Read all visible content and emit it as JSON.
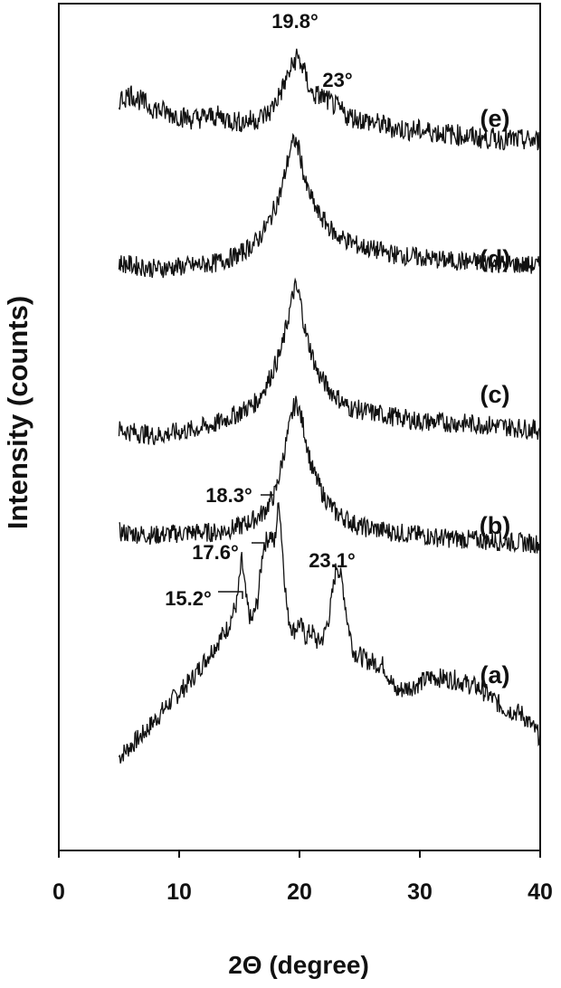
{
  "chart_data": {
    "type": "line",
    "xlabel": "2Θ (degree)",
    "ylabel": "Intensity (counts)",
    "xlim": [
      0,
      40
    ],
    "xticks": [
      0,
      10,
      20,
      30,
      40
    ],
    "xtick_labels": [
      "0",
      "10",
      "20",
      "30",
      "40"
    ],
    "y_units": "arbitrary, curves vertically offset",
    "grid": false,
    "series": [
      {
        "name": "(a)",
        "points": [
          [
            5,
            0.08
          ],
          [
            7,
            0.16
          ],
          [
            9,
            0.26
          ],
          [
            11,
            0.35
          ],
          [
            12.5,
            0.44
          ],
          [
            14,
            0.53
          ],
          [
            14.8,
            0.62
          ],
          [
            15.2,
            0.77
          ],
          [
            15.6,
            0.62
          ],
          [
            16,
            0.55
          ],
          [
            16.5,
            0.62
          ],
          [
            17,
            0.82
          ],
          [
            17.6,
            0.86
          ],
          [
            17.9,
            0.82
          ],
          [
            18.3,
            0.98
          ],
          [
            18.7,
            0.74
          ],
          [
            19,
            0.58
          ],
          [
            19.5,
            0.52
          ],
          [
            20,
            0.55
          ],
          [
            20.5,
            0.5
          ],
          [
            21,
            0.52
          ],
          [
            21.5,
            0.48
          ],
          [
            22,
            0.5
          ],
          [
            22.5,
            0.58
          ],
          [
            23.1,
            0.76
          ],
          [
            23.6,
            0.68
          ],
          [
            24,
            0.55
          ],
          [
            24.5,
            0.45
          ],
          [
            25.5,
            0.42
          ],
          [
            27,
            0.4
          ],
          [
            28,
            0.31
          ],
          [
            29.5,
            0.33
          ],
          [
            31,
            0.36
          ],
          [
            33,
            0.35
          ],
          [
            35,
            0.32
          ],
          [
            37,
            0.25
          ],
          [
            38.5,
            0.23
          ],
          [
            40,
            0.15
          ]
        ]
      },
      {
        "name": "(b)",
        "points": [
          [
            5,
            0.3
          ],
          [
            8,
            0.29
          ],
          [
            11,
            0.3
          ],
          [
            13,
            0.3
          ],
          [
            15,
            0.32
          ],
          [
            16,
            0.34
          ],
          [
            17,
            0.37
          ],
          [
            18,
            0.44
          ],
          [
            18.3,
            0.5
          ],
          [
            18.8,
            0.6
          ],
          [
            19.5,
            0.74
          ],
          [
            19.8,
            0.76
          ],
          [
            20.3,
            0.68
          ],
          [
            21,
            0.53
          ],
          [
            22,
            0.43
          ],
          [
            23,
            0.37
          ],
          [
            25,
            0.32
          ],
          [
            28,
            0.3
          ],
          [
            32,
            0.28
          ],
          [
            36,
            0.27
          ],
          [
            40,
            0.26
          ]
        ]
      },
      {
        "name": "(c)",
        "points": [
          [
            5,
            0.3
          ],
          [
            8,
            0.28
          ],
          [
            11,
            0.3
          ],
          [
            13,
            0.32
          ],
          [
            15,
            0.36
          ],
          [
            16.5,
            0.4
          ],
          [
            17.5,
            0.48
          ],
          [
            18.5,
            0.58
          ],
          [
            19.2,
            0.72
          ],
          [
            19.6,
            0.8
          ],
          [
            20,
            0.77
          ],
          [
            20.5,
            0.64
          ],
          [
            21.5,
            0.5
          ],
          [
            22.5,
            0.44
          ],
          [
            24,
            0.38
          ],
          [
            26,
            0.36
          ],
          [
            30,
            0.33
          ],
          [
            35,
            0.32
          ],
          [
            40,
            0.3
          ]
        ]
      },
      {
        "name": "(d)",
        "points": [
          [
            5,
            0.32
          ],
          [
            8,
            0.3
          ],
          [
            11,
            0.31
          ],
          [
            13,
            0.32
          ],
          [
            15,
            0.35
          ],
          [
            16.5,
            0.4
          ],
          [
            17.5,
            0.47
          ],
          [
            18.5,
            0.58
          ],
          [
            19.2,
            0.72
          ],
          [
            19.6,
            0.76
          ],
          [
            20,
            0.72
          ],
          [
            20.5,
            0.6
          ],
          [
            21.5,
            0.5
          ],
          [
            23,
            0.42
          ],
          [
            25,
            0.38
          ],
          [
            28,
            0.35
          ],
          [
            32,
            0.33
          ],
          [
            36,
            0.32
          ],
          [
            40,
            0.31
          ]
        ]
      },
      {
        "name": "(e)",
        "points": [
          [
            5,
            0.36
          ],
          [
            6,
            0.38
          ],
          [
            7.5,
            0.34
          ],
          [
            9,
            0.32
          ],
          [
            11,
            0.3
          ],
          [
            13,
            0.31
          ],
          [
            15,
            0.29
          ],
          [
            16.5,
            0.3
          ],
          [
            17.5,
            0.32
          ],
          [
            18.5,
            0.39
          ],
          [
            19.3,
            0.46
          ],
          [
            19.8,
            0.5
          ],
          [
            20.3,
            0.46
          ],
          [
            21,
            0.38
          ],
          [
            22,
            0.37
          ],
          [
            23,
            0.34
          ],
          [
            24,
            0.31
          ],
          [
            26,
            0.29
          ],
          [
            28,
            0.27
          ],
          [
            31,
            0.26
          ],
          [
            35,
            0.24
          ],
          [
            40,
            0.23
          ]
        ]
      }
    ],
    "curve_labels": [
      {
        "text": "(a)",
        "series": "(a)"
      },
      {
        "text": "(b)",
        "series": "(b)"
      },
      {
        "text": "(c)",
        "series": "(c)"
      },
      {
        "text": "(d)",
        "series": "(d)"
      },
      {
        "text": "(e)",
        "series": "(e)"
      }
    ],
    "annotations": [
      {
        "text": "15.2°",
        "series": "(a)",
        "x": 15.2
      },
      {
        "text": "17.6°",
        "series": "(a)",
        "x": 17.6
      },
      {
        "text": "18.3°",
        "series": "(a)",
        "x": 18.3
      },
      {
        "text": "23.1°",
        "series": "(a)",
        "x": 23.1
      },
      {
        "text": "19.8°",
        "series": "(e)",
        "x": 19.8
      },
      {
        "text": "23°",
        "series": "(e)",
        "x": 23
      }
    ]
  }
}
